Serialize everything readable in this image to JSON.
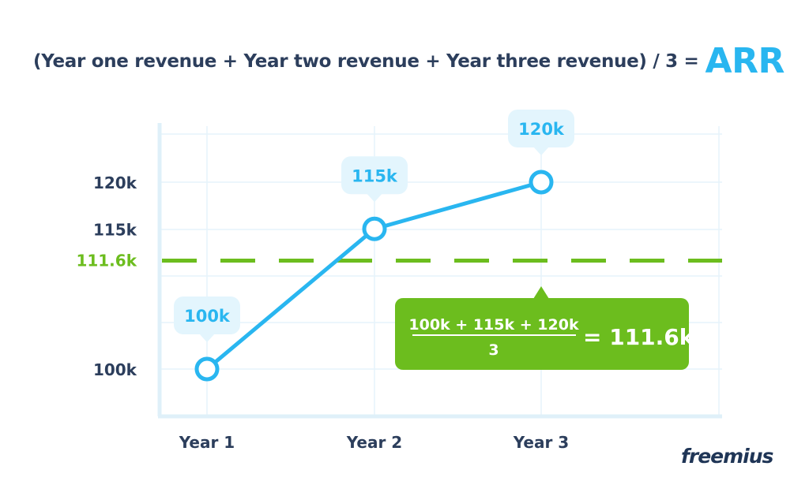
{
  "header": {
    "formula_text": "(Year one revenue + Year two revenue + Year three revenue) / 3 =",
    "formula_result": "ARR"
  },
  "logo": {
    "text": "freemius"
  },
  "colors": {
    "line": "#29b6f0",
    "callout_bg": "#e3f5fd",
    "callout_text": "#29b6f0",
    "average": "#6cbd1e",
    "axis_text": "#2c3e5c",
    "grid": "#e6f4fb",
    "axis": "#dff0f9"
  },
  "chart_data": {
    "type": "line",
    "categories": [
      "Year 1",
      "Year 2",
      "Year 3"
    ],
    "values": [
      100,
      115,
      120
    ],
    "point_labels": [
      "100k",
      "115k",
      "120k"
    ],
    "y_ticks": [
      {
        "value": 100,
        "label": "100k"
      },
      {
        "value": 115,
        "label": "115k"
      },
      {
        "value": 120,
        "label": "120k"
      }
    ],
    "average": {
      "value": 111.6,
      "label": "111.6k",
      "style": "dashed"
    },
    "formula": {
      "numerator": "100k + 115k + 120k",
      "denominator": "3",
      "result": "= 111.6k"
    },
    "grid": true
  }
}
